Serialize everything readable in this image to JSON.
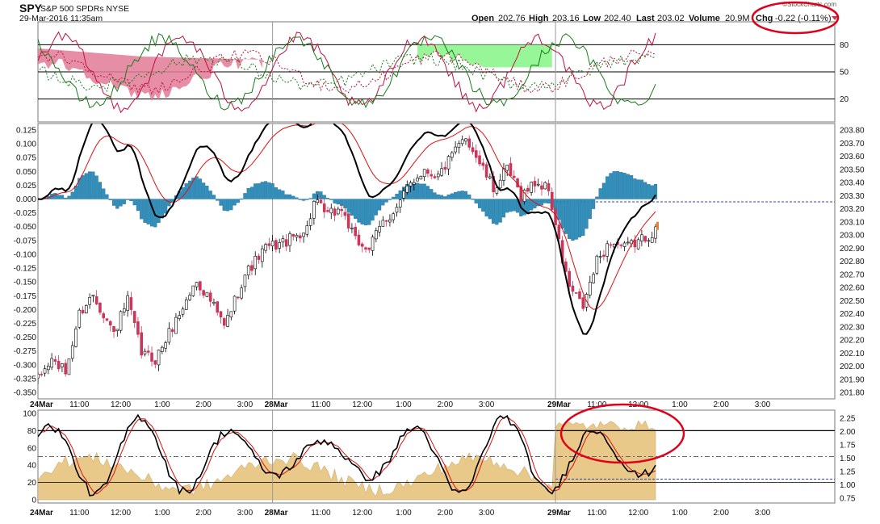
{
  "header": {
    "symbol": "SPY",
    "name": "S&P 500 SPDRs NYSE",
    "datetime": "29-Mar-2016 11:35am",
    "brand": "©StockCharts.com",
    "open_label": "Open",
    "open": "202.76",
    "high_label": "High",
    "high": "203.16",
    "low_label": "Low",
    "low": "202.40",
    "last_label": "Last",
    "last": "203.02",
    "volume_label": "Volume",
    "volume": "20.9M",
    "chg_label": "Chg",
    "chg": "-0.22 (-0.11%)"
  },
  "colors": {
    "up": "#000000",
    "down": "#c8375a",
    "hist": "#2f8fbd",
    "green_fill": "#8cf58c",
    "pink_fill": "#e07a95",
    "tan_fill": "#e9c98a",
    "annotation": "#e0001a"
  },
  "chart_data": [
    {
      "panel": "top-oscillator",
      "type": "line",
      "yticks": [
        "80",
        "50",
        "20"
      ],
      "levels": [
        80,
        50,
        20
      ],
      "ylim": [
        0,
        100
      ]
    },
    {
      "panel": "main",
      "type": "candlestick",
      "x_labels": [
        "24Mar",
        "11:00",
        "12:00",
        "1:00",
        "2:00",
        "3:00",
        "28Mar",
        "11:00",
        "12:00",
        "1:00",
        "2:00",
        "3:00",
        "29Mar",
        "11:00",
        "12:00",
        "1:00",
        "2:00",
        "3:00"
      ],
      "left_axis": {
        "ticks": [
          "0.125",
          "0.100",
          "0.075",
          "0.050",
          "0.025",
          "0.000",
          "-0.025",
          "-0.050",
          "-0.075",
          "-0.100",
          "-0.125",
          "-0.150",
          "-0.175",
          "-0.200",
          "-0.225",
          "-0.250",
          "-0.275",
          "-0.300",
          "-0.325",
          "-0.350"
        ],
        "ylim": [
          -0.35,
          0.125
        ]
      },
      "right_axis": {
        "ticks": [
          "203.80",
          "203.70",
          "203.60",
          "203.50",
          "203.40",
          "203.30",
          "203.20",
          "203.10",
          "203.00",
          "202.90",
          "202.80",
          "202.70",
          "202.60",
          "202.50",
          "202.40",
          "202.30",
          "202.20",
          "202.10",
          "202.00",
          "201.90",
          "201.80"
        ],
        "ylim": [
          201.8,
          203.8
        ]
      },
      "close_anchors": [
        [
          0,
          201.9
        ],
        [
          4,
          202.05
        ],
        [
          8,
          201.95
        ],
        [
          12,
          202.4
        ],
        [
          16,
          202.55
        ],
        [
          22,
          202.25
        ],
        [
          26,
          202.5
        ],
        [
          30,
          202.1
        ],
        [
          34,
          202.05
        ],
        [
          40,
          202.35
        ],
        [
          46,
          202.65
        ],
        [
          50,
          202.5
        ],
        [
          54,
          202.3
        ],
        [
          60,
          202.7
        ],
        [
          66,
          202.9
        ],
        [
          72,
          202.95
        ],
        [
          78,
          203.05
        ],
        [
          80,
          203.25
        ],
        [
          84,
          203.15
        ],
        [
          88,
          203.2
        ],
        [
          92,
          202.95
        ],
        [
          96,
          202.9
        ],
        [
          100,
          203.1
        ],
        [
          104,
          203.2
        ],
        [
          108,
          203.4
        ],
        [
          112,
          203.5
        ],
        [
          116,
          203.45
        ],
        [
          120,
          203.6
        ],
        [
          124,
          203.75
        ],
        [
          128,
          203.55
        ],
        [
          132,
          203.35
        ],
        [
          136,
          203.5
        ],
        [
          140,
          203.3
        ],
        [
          144,
          203.4
        ],
        [
          148,
          203.35
        ],
        [
          152,
          202.8
        ],
        [
          154,
          202.6
        ],
        [
          158,
          202.45
        ],
        [
          162,
          202.8
        ],
        [
          166,
          202.95
        ],
        [
          170,
          202.9
        ],
        [
          174,
          202.95
        ],
        [
          178,
          203.02
        ]
      ]
    },
    {
      "panel": "bottom-oscillator",
      "type": "line",
      "left_ticks": [
        "100",
        "80",
        "60",
        "40",
        "20",
        "0"
      ],
      "right_ticks": [
        "2.25",
        "2.00",
        "1.75",
        "1.50",
        "1.25",
        "1.00",
        "0.75"
      ],
      "x_labels": [
        "24Mar",
        "11:00",
        "12:00",
        "1:00",
        "2:00",
        "3:00",
        "28Mar",
        "11:00",
        "12:00",
        "1:00",
        "2:00",
        "3:00",
        "29Mar",
        "11:00",
        "12:00",
        "1:00",
        "2:00",
        "3:00"
      ],
      "ylim": [
        0,
        100
      ]
    }
  ]
}
